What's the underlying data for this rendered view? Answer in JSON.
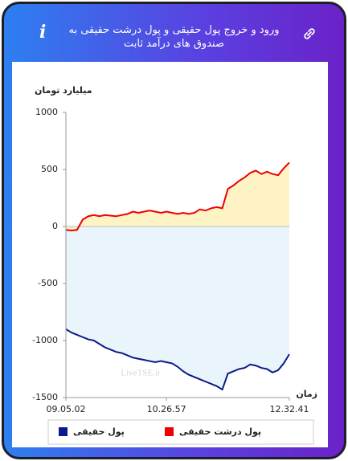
{
  "header": {
    "title": "ورود و خروج پول حقیقی و پول درشت حقیقی به صندوق های درآمد ثابت"
  },
  "chart_data": {
    "type": "line",
    "y_label": "میلیارد تومان",
    "x_label": "زمان",
    "watermark": "LiveTSE.ir",
    "categories": [
      "09.05.02",
      null,
      null,
      null,
      null,
      null,
      null,
      null,
      null,
      null,
      null,
      null,
      null,
      null,
      null,
      null,
      null,
      null,
      "10.26.57",
      null,
      null,
      null,
      null,
      null,
      null,
      null,
      null,
      null,
      null,
      null,
      null,
      null,
      null,
      null,
      null,
      null,
      null,
      null,
      null,
      null,
      "12.32.41"
    ],
    "ylim": [
      -1500,
      1000
    ],
    "yticks": [
      -1500,
      -1000,
      -500,
      0,
      500,
      1000
    ],
    "series": [
      {
        "name": "پول حقیقی",
        "color": "#0a1a8c",
        "fill": "#e9f4fb",
        "values": [
          -900,
          -930,
          -950,
          -970,
          -990,
          -1000,
          -1030,
          -1060,
          -1080,
          -1100,
          -1110,
          -1130,
          -1150,
          -1160,
          -1170,
          -1180,
          -1190,
          -1180,
          -1190,
          -1200,
          -1230,
          -1270,
          -1300,
          -1320,
          -1340,
          -1360,
          -1380,
          -1400,
          -1430,
          -1290,
          -1270,
          -1250,
          -1240,
          -1210,
          -1220,
          -1240,
          -1250,
          -1280,
          -1260,
          -1200,
          -1120
        ]
      },
      {
        "name": "پول درشت حقیقی",
        "color": "#ee0000",
        "fill": "#fdf3c4",
        "values": [
          -30,
          -35,
          -30,
          60,
          90,
          100,
          90,
          100,
          95,
          90,
          100,
          110,
          130,
          120,
          130,
          140,
          130,
          120,
          130,
          120,
          110,
          120,
          110,
          120,
          150,
          140,
          160,
          170,
          160,
          330,
          360,
          400,
          430,
          470,
          490,
          460,
          480,
          460,
          450,
          510,
          560
        ]
      }
    ]
  }
}
